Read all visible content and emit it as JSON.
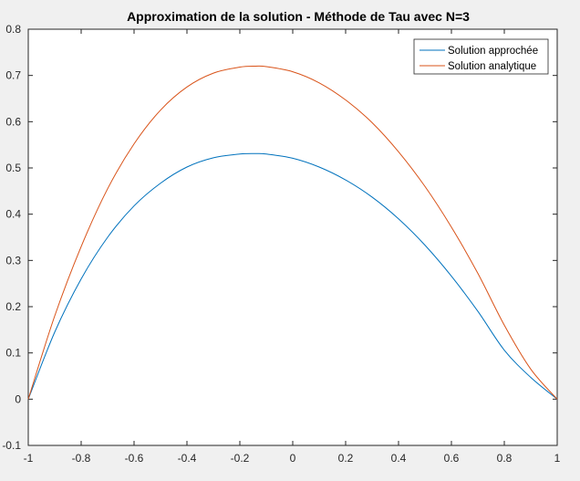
{
  "chart_data": {
    "type": "line",
    "title": "Approximation de la solution - Méthode de Tau avec N=3",
    "xlabel": "",
    "ylabel": "",
    "xlim": [
      -1,
      1
    ],
    "ylim": [
      -0.1,
      0.8
    ],
    "xticks": [
      -1,
      -0.8,
      -0.6,
      -0.4,
      -0.2,
      0,
      0.2,
      0.4,
      0.6,
      0.8,
      1
    ],
    "xtick_labels": [
      "-1",
      "-0.8",
      "-0.6",
      "-0.4",
      "-0.2",
      "0",
      "0.2",
      "0.4",
      "0.6",
      "0.8",
      "1"
    ],
    "yticks": [
      -0.1,
      0,
      0.1,
      0.2,
      0.3,
      0.4,
      0.5,
      0.6,
      0.7,
      0.8
    ],
    "ytick_labels": [
      "-0.1",
      "0",
      "0.1",
      "0.2",
      "0.3",
      "0.4",
      "0.5",
      "0.6",
      "0.7",
      "0.8"
    ],
    "grid": false,
    "legend_position": "top-right",
    "x": [
      -1,
      -0.9,
      -0.8,
      -0.7,
      -0.6,
      -0.5,
      -0.4,
      -0.3,
      -0.2,
      -0.14,
      -0.1,
      0,
      0.1,
      0.2,
      0.3,
      0.4,
      0.5,
      0.6,
      0.7,
      0.8,
      0.9,
      1
    ],
    "series": [
      {
        "name": "Solution approchée",
        "color": "#0072BD",
        "values": [
          0,
          0.145,
          0.26,
          0.35,
          0.418,
          0.467,
          0.502,
          0.522,
          0.53,
          0.531,
          0.53,
          0.521,
          0.502,
          0.474,
          0.437,
          0.39,
          0.333,
          0.266,
          0.19,
          0.106,
          0.047,
          0
        ]
      },
      {
        "name": "Solution analytique",
        "color": "#D95319",
        "values": [
          0,
          0.18,
          0.33,
          0.455,
          0.552,
          0.625,
          0.675,
          0.705,
          0.718,
          0.72,
          0.719,
          0.708,
          0.684,
          0.647,
          0.598,
          0.535,
          0.46,
          0.372,
          0.272,
          0.16,
          0.065,
          0
        ]
      }
    ]
  }
}
